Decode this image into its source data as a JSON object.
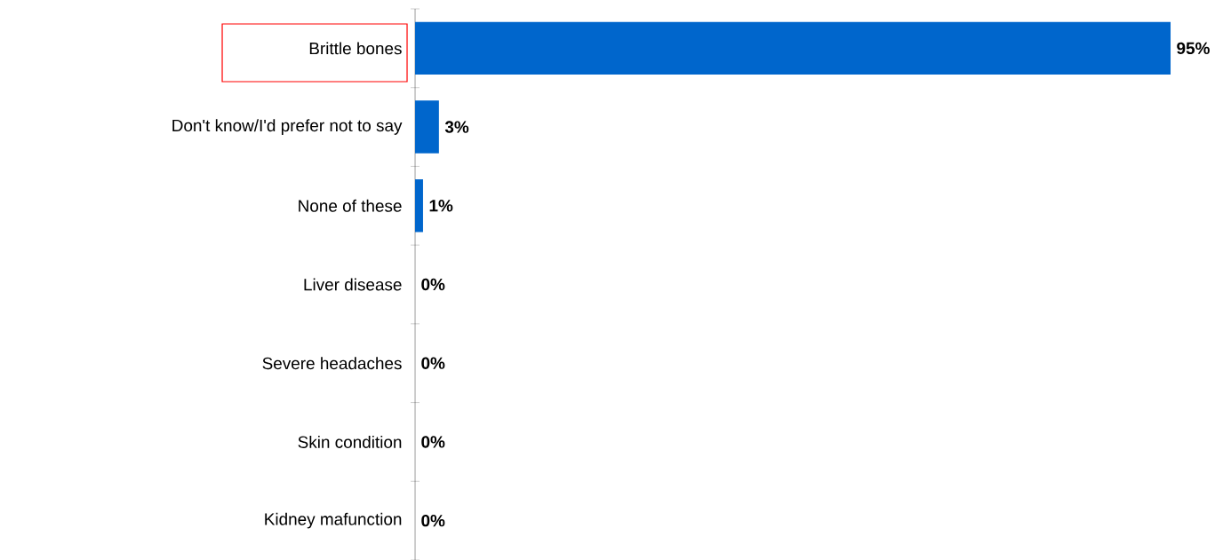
{
  "chart_data": {
    "type": "bar",
    "orientation": "horizontal",
    "categories": [
      "Brittle bones",
      "Don't know/I'd prefer not to say",
      "None of these",
      "Liver disease",
      "Severe headaches",
      "Skin condition",
      "Kidney mafunction"
    ],
    "values": [
      95,
      3,
      1,
      0,
      0,
      0,
      0
    ],
    "value_labels": [
      "95%",
      "3%",
      "1%",
      "0%",
      "0%",
      "0%",
      "0%"
    ],
    "color": "#0066cc"
  }
}
